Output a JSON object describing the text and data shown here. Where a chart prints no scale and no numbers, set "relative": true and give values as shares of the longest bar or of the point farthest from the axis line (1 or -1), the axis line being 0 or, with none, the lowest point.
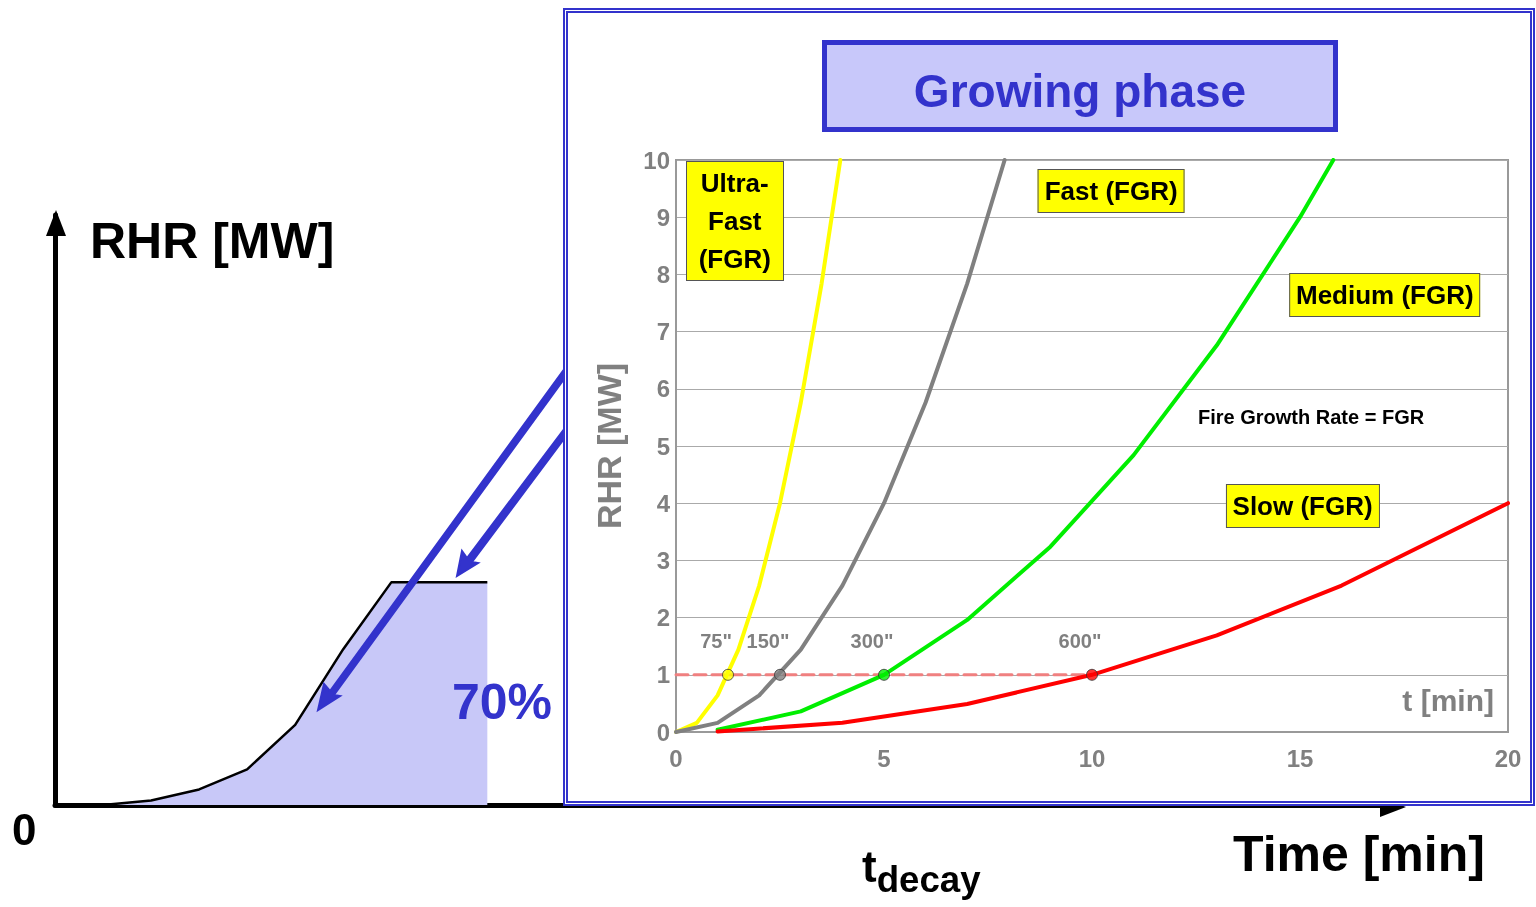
{
  "chart_data": [
    {
      "type": "area",
      "relative": true,
      "xlabel": "Time [min]",
      "ylabel": "RHR [MW]",
      "annotations": [
        "0",
        "t$_{decay}$",
        "70%"
      ],
      "color": "#c8c8f8",
      "categories": [
        null,
        null,
        null,
        null,
        null,
        null,
        null,
        null,
        null,
        null,
        null,
        null,
        null,
        null,
        null,
        null,
        null,
        null,
        null,
        null,
        null,
        null,
        null,
        null,
        null,
        null,
        null,
        null,
        null
      ],
      "values": [
        0,
        0,
        0.02,
        0.07,
        0.16,
        0.36,
        0.7,
        1,
        1,
        1,
        null,
        null,
        null,
        null,
        null,
        null,
        null,
        null,
        null,
        null,
        null,
        null,
        null,
        null,
        null,
        null,
        null,
        null,
        null
      ]
    },
    {
      "type": "line",
      "title": "Growing phase",
      "xlabel": "t [min]",
      "ylabel": "RHR [MW]",
      "annotations": [
        "Fire Growth Rate = FGR",
        {
          "text": "75\"",
          "x": 1.25,
          "y": 1
        },
        {
          "text": "150\"",
          "x": 2.5,
          "y": 1
        },
        {
          "text": "300\"",
          "x": 5,
          "y": 1
        },
        {
          "text": "600\"",
          "x": 10,
          "y": 1
        }
      ],
      "xlim": [
        0,
        20
      ],
      "xticks": [
        0,
        5,
        10,
        15,
        20
      ],
      "ylim": [
        0,
        10
      ],
      "yticks": [
        0,
        1,
        2,
        3,
        4,
        5,
        6,
        7,
        8,
        9,
        10
      ],
      "grid": "y",
      "marker": "none",
      "series": [
        {
          "name": "Ultra-Fast (FGR)",
          "color": "#ffff00",
          "x": [
            0,
            0.5,
            1,
            1.5,
            2,
            2.5,
            3,
            3.5,
            3.95
          ],
          "values": [
            0,
            0.16,
            0.64,
            1.44,
            2.56,
            4,
            5.76,
            7.84,
            10
          ]
        },
        {
          "name": "Fast (FGR)",
          "color": "#808080",
          "x": [
            0,
            1,
            2,
            3,
            4,
            5,
            6,
            7,
            7.9
          ],
          "values": [
            0,
            0.16,
            0.64,
            1.44,
            2.56,
            4,
            5.76,
            7.84,
            10
          ]
        },
        {
          "name": "Medium (FGR)",
          "color": "#00ee00",
          "x": [
            1,
            3,
            5,
            7,
            9,
            11,
            13,
            15,
            15.8
          ],
          "values": [
            0.04,
            0.36,
            1,
            1.96,
            3.24,
            4.84,
            6.76,
            9,
            10
          ]
        },
        {
          "name": "Slow (FGR)",
          "color": "#ff0000",
          "x": [
            1,
            4,
            7,
            10,
            13,
            16,
            20
          ],
          "values": [
            0.01,
            0.16,
            0.49,
            1,
            1.69,
            2.56,
            4
          ]
        },
        {
          "type": "line",
          "color": "#f08080",
          "line_style": "dashed",
          "x": [
            0,
            10
          ],
          "values": [
            1,
            1
          ]
        },
        {
          "type": "scatter",
          "marker": "circle",
          "x": [
            1.25,
            2.5,
            5,
            10
          ],
          "values": [
            1,
            1,
            1,
            1
          ],
          "colors": [
            "#ffff00",
            "#808080",
            "#00ee00",
            "#ff0000"
          ]
        }
      ]
    }
  ]
}
